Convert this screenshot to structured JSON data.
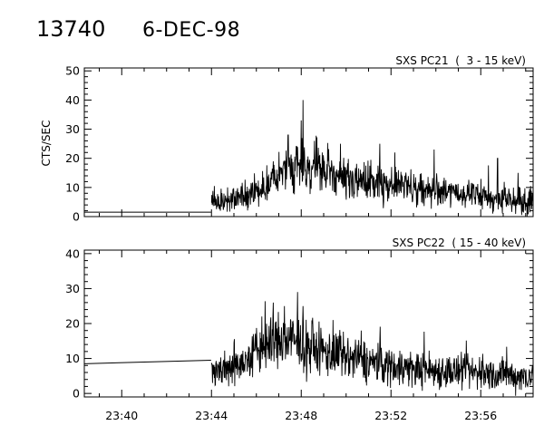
{
  "header": {
    "id": "13740",
    "date": "6-DEC-98"
  },
  "chart_data": [
    {
      "type": "line",
      "title": "SXS PC21  (  3 - 15 keV)",
      "ylabel": "CTS/SEC",
      "xlabel": "",
      "ylim": [
        0,
        51
      ],
      "yticks": [
        0,
        10,
        20,
        30,
        40,
        50
      ],
      "xlim": [
        "23:38:20",
        "23:58:20"
      ],
      "xticks": [
        "23:40",
        "23:44",
        "23:48",
        "23:52",
        "23:56"
      ],
      "grid": false,
      "series": [
        {
          "gap_segment": {
            "x": [
              "23:38:20",
              "23:43:59"
            ],
            "y": [
              1.5,
              1.5
            ]
          },
          "x": [
            "23:44:00",
            "23:44:30",
            "23:45:00",
            "23:45:30",
            "23:46:00",
            "23:46:30",
            "23:47:00",
            "23:47:30",
            "23:48:00",
            "23:48:30",
            "23:49:00",
            "23:49:30",
            "23:50:00",
            "23:50:30",
            "23:51:00",
            "23:51:30",
            "23:52:00",
            "23:52:30",
            "23:53:00",
            "23:53:30",
            "23:54:00",
            "23:54:30",
            "23:55:00",
            "23:55:30",
            "23:56:00",
            "23:56:30",
            "23:57:00",
            "23:57:30",
            "23:58:00",
            "23:58:20"
          ],
          "y": [
            5,
            5,
            6,
            7,
            9,
            11,
            14,
            16,
            18,
            17,
            15,
            14,
            13,
            12.5,
            12,
            11.5,
            11,
            10.5,
            10,
            9.5,
            9,
            8.5,
            8,
            7.5,
            7,
            6.5,
            6,
            6,
            5.5,
            5.5
          ],
          "peaks": [
            {
              "x": "23:48:00",
              "y": 33
            },
            {
              "x": "23:47:25",
              "y": 28
            },
            {
              "x": "23:48:35",
              "y": 26
            },
            {
              "x": "23:49:45",
              "y": 25
            },
            {
              "x": "23:51:30",
              "y": 25
            },
            {
              "x": "23:53:55",
              "y": 23
            },
            {
              "x": "23:52:10",
              "y": 22
            },
            {
              "x": "23:56:45",
              "y": 20
            },
            {
              "x": "23:57:40",
              "y": 15
            }
          ]
        }
      ]
    },
    {
      "type": "line",
      "title": "SXS PC22  ( 15 - 40 keV)",
      "ylabel": "",
      "xlabel": "",
      "ylim": [
        -1,
        41
      ],
      "yticks": [
        0,
        10,
        20,
        30,
        40
      ],
      "xlim": [
        "23:38:20",
        "23:58:20"
      ],
      "xticks": [
        "23:40",
        "23:44",
        "23:48",
        "23:52",
        "23:56"
      ],
      "grid": false,
      "series": [
        {
          "gap_segment": {
            "x": [
              "23:38:20",
              "23:43:59"
            ],
            "y": [
              8.5,
              9.5
            ]
          },
          "x": [
            "23:44:00",
            "23:44:30",
            "23:45:00",
            "23:45:30",
            "23:46:00",
            "23:46:30",
            "23:47:00",
            "23:47:30",
            "23:48:00",
            "23:48:30",
            "23:49:00",
            "23:49:30",
            "23:50:00",
            "23:50:30",
            "23:51:00",
            "23:51:30",
            "23:52:00",
            "23:52:30",
            "23:53:00",
            "23:53:30",
            "23:54:00",
            "23:54:30",
            "23:55:00",
            "23:55:30",
            "23:56:00",
            "23:56:30",
            "23:57:00",
            "23:57:30",
            "23:58:00",
            "23:58:20"
          ],
          "y": [
            7,
            7,
            8,
            9,
            12,
            14,
            15,
            15,
            14,
            13,
            12,
            11,
            10,
            9.5,
            9,
            8.5,
            8,
            7.5,
            7,
            7,
            6.5,
            6.5,
            6,
            6,
            6,
            5.5,
            5.5,
            5,
            5,
            5
          ],
          "peaks": [
            {
              "x": "23:46:45",
              "y": 26
            },
            {
              "x": "23:47:15",
              "y": 25
            },
            {
              "x": "23:48:05",
              "y": 25
            },
            {
              "x": "23:49:25",
              "y": 21
            },
            {
              "x": "23:46:15",
              "y": 22
            },
            {
              "x": "23:50:40",
              "y": 18
            }
          ]
        }
      ]
    }
  ]
}
